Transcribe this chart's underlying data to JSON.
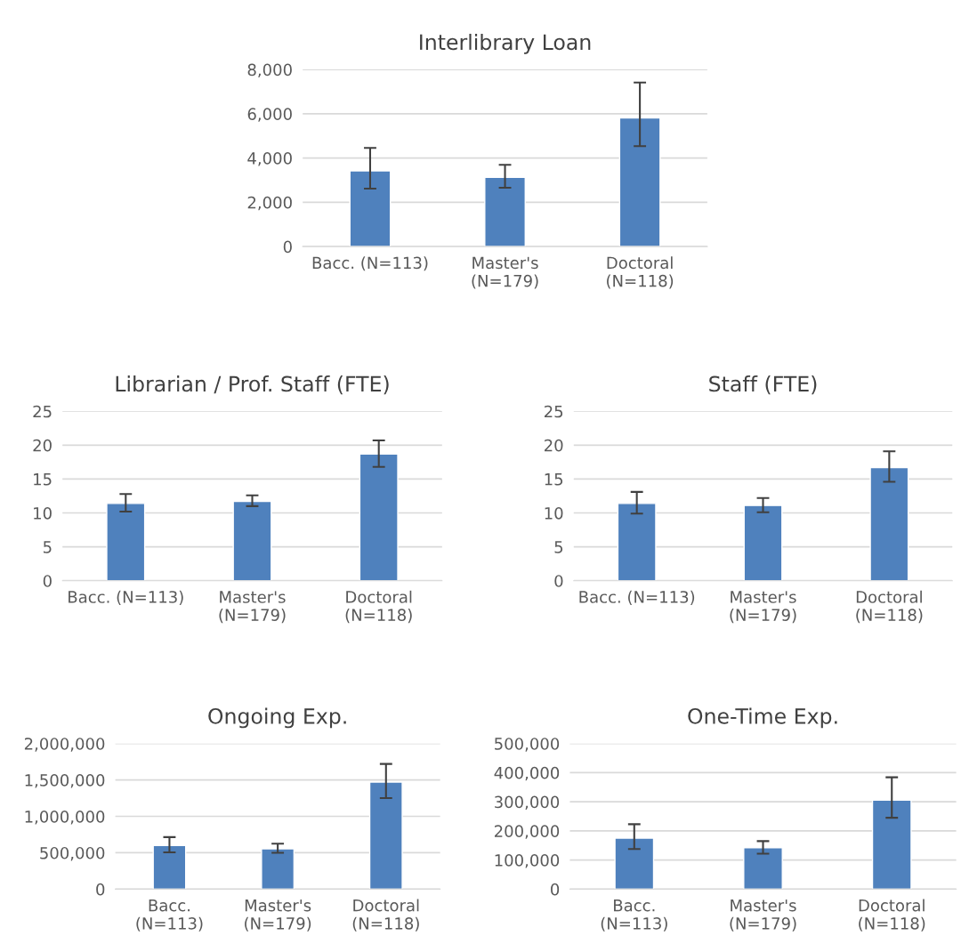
{
  "chart_data": [
    {
      "type": "bar",
      "title": "Interlibrary Loan",
      "categories": [
        "Bacc. (N=113)",
        "Master's\n(N=179)",
        "Doctoral\n(N=118)"
      ],
      "values": [
        3420,
        3130,
        5810
      ],
      "color": "#4f81bd",
      "errors": [
        [
          2620,
          4460
        ],
        [
          2660,
          3690
        ],
        [
          4540,
          7410
        ]
      ],
      "ylim": [
        0,
        8000
      ],
      "yticks": [
        0,
        {
          "value": 2000,
          "label": "2,000"
        },
        {
          "value": 4000,
          "label": "4,000"
        },
        {
          "value": 6000,
          "label": "6,000"
        },
        {
          "value": 8000,
          "label": "8,000"
        }
      ],
      "grid": "y"
    },
    {
      "type": "bar",
      "title": "Librarian / Prof. Staff (FTE)",
      "categories": [
        "Bacc. (N=113)",
        "Master's\n(N=179)",
        "Doctoral\n(N=118)"
      ],
      "values": [
        11.4,
        11.7,
        18.7
      ],
      "color": "#4f81bd",
      "errors": [
        [
          10.2,
          12.8
        ],
        [
          11.0,
          12.6
        ],
        [
          16.8,
          20.7
        ]
      ],
      "ylim": [
        0,
        25
      ],
      "yticks": [
        0,
        5,
        10,
        15,
        20,
        25
      ],
      "grid": "y"
    },
    {
      "type": "bar",
      "title": "Staff (FTE)",
      "categories": [
        "Bacc. (N=113)",
        "Master's\n(N=179)",
        "Doctoral\n(N=118)"
      ],
      "values": [
        11.4,
        11.1,
        16.7
      ],
      "color": "#4f81bd",
      "errors": [
        [
          9.9,
          13.1
        ],
        [
          10.1,
          12.2
        ],
        [
          14.6,
          19.1
        ]
      ],
      "ylim": [
        0,
        25
      ],
      "yticks": [
        0,
        5,
        10,
        15,
        20,
        25
      ],
      "grid": "y"
    },
    {
      "type": "bar",
      "title": "Ongoing Exp.",
      "categories": [
        "Bacc.\n(N=113)",
        "Master's\n(N=179)",
        "Doctoral\n(N=118)"
      ],
      "values": [
        600000,
        555000,
        1470000
      ],
      "color": "#4f81bd",
      "errors": [
        [
          505000,
          715000
        ],
        [
          500000,
          625000
        ],
        [
          1250000,
          1720000
        ]
      ],
      "ylim": [
        0,
        2000000
      ],
      "yticks": [
        0,
        {
          "value": 500000,
          "label": "500,000"
        },
        {
          "value": 1000000,
          "label": "1,000,000"
        },
        {
          "value": 1500000,
          "label": "1,500,000"
        },
        {
          "value": 2000000,
          "label": "2,000,000"
        }
      ],
      "grid": "y"
    },
    {
      "type": "bar",
      "title": "One-Time Exp.",
      "categories": [
        "Bacc.\n(N=113)",
        "Master's\n(N=179)",
        "Doctoral\n(N=118)"
      ],
      "values": [
        175000,
        142000,
        306000
      ],
      "color": "#4f81bd",
      "errors": [
        [
          138000,
          223000
        ],
        [
          122000,
          165000
        ],
        [
          245000,
          384000
        ]
      ],
      "ylim": [
        0,
        500000
      ],
      "yticks": [
        0,
        {
          "value": 100000,
          "label": "100,000"
        },
        {
          "value": 200000,
          "label": "200,000"
        },
        {
          "value": 300000,
          "label": "300,000"
        },
        {
          "value": 400000,
          "label": "400,000"
        },
        {
          "value": 500000,
          "label": "500,000"
        }
      ],
      "grid": "y"
    }
  ]
}
